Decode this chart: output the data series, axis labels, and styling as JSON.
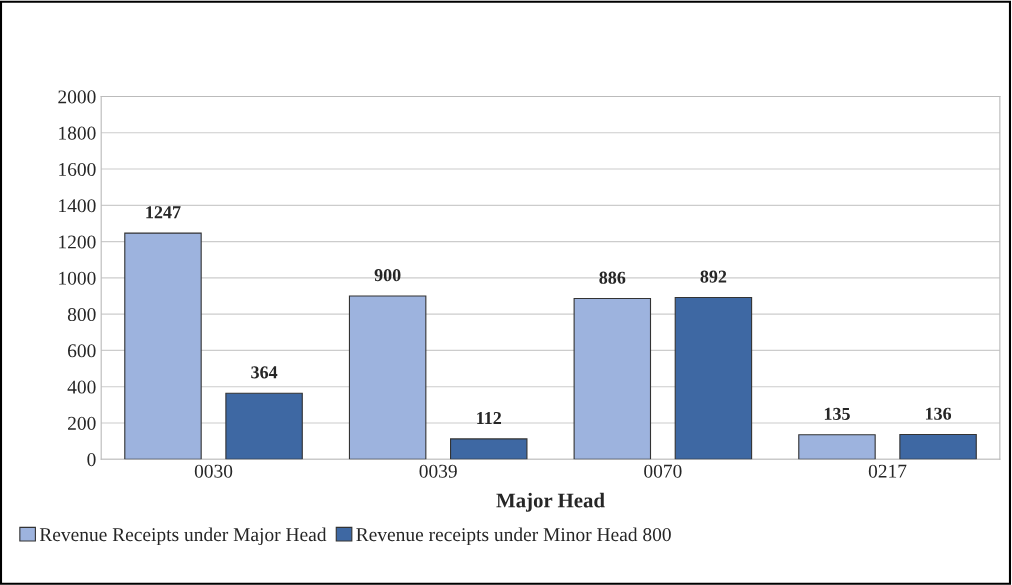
{
  "chart_data": {
    "type": "bar",
    "xlabel": "Major Head",
    "categories": [
      "0030",
      "0039",
      "0070",
      "0217"
    ],
    "series": [
      {
        "name": "Revenue Receipts under Major Head",
        "color": "#9db3de",
        "values": [
          1247,
          900,
          886,
          135
        ]
      },
      {
        "name": "Revenue receipts under Minor Head 800",
        "color": "#3e68a3",
        "values": [
          364,
          112,
          892,
          136
        ]
      }
    ],
    "ylim": [
      0,
      2000
    ],
    "yticks": [
      0,
      200,
      400,
      600,
      800,
      1000,
      1200,
      1400,
      1600,
      1800,
      2000
    ],
    "grid": "y",
    "legend": "bottom",
    "data_labels": true
  }
}
